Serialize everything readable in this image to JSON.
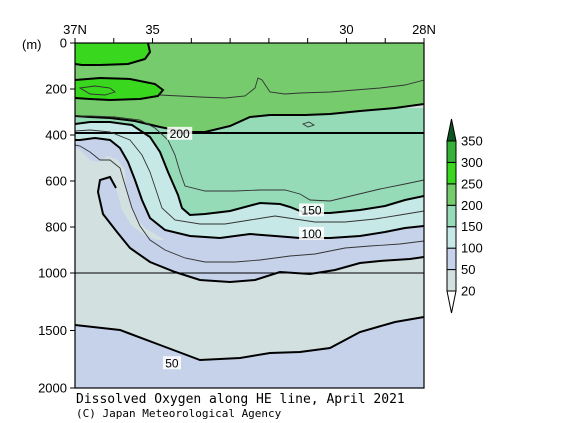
{
  "chart_data": {
    "type": "contour",
    "title": "Dissolved Oxygen along HE line, April 2021",
    "credit": "(C) Japan Meteorological Agency",
    "ylabel": "(m)",
    "x_ticks": [
      "37N",
      "35",
      "30",
      "28N"
    ],
    "y_ticks": [
      "0",
      "200",
      "400",
      "600",
      "800",
      "1000",
      "1500",
      "2000"
    ],
    "xlim": [
      37,
      28
    ],
    "ylim": [
      0,
      2000
    ],
    "y_break": 1000,
    "legend": {
      "placement": "right",
      "levels": [
        "20",
        "50",
        "100",
        "150",
        "200",
        "250",
        "300",
        "350"
      ],
      "colors": [
        "#d3e0e0",
        "#c5d2ea",
        "#c6e8e6",
        "#96dbb8",
        "#76cc6c",
        "#39d71e",
        "#36b036",
        "#0d5422"
      ]
    },
    "contour_labels": [
      {
        "text": "200",
        "lat": 34.3,
        "depth": 395
      },
      {
        "text": "150",
        "lat": 30.9,
        "depth": 728
      },
      {
        "text": "100",
        "lat": 30.9,
        "depth": 830
      },
      {
        "text": "50",
        "lat": 34.5,
        "depth": 1785
      }
    ]
  }
}
